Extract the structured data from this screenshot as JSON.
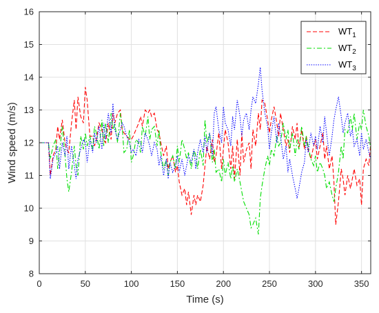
{
  "chart_data": {
    "type": "line",
    "xlabel": "Time (s)",
    "ylabel": "Wind speed (m/s)",
    "xlim": [
      0,
      360
    ],
    "ylim": [
      8,
      16
    ],
    "xticks": [
      "0",
      "50",
      "100",
      "150",
      "200",
      "250",
      "300",
      "350"
    ],
    "yticks": [
      "8",
      "9",
      "10",
      "11",
      "12",
      "13",
      "14",
      "15",
      "16"
    ],
    "grid": true,
    "legend_position": "top-right",
    "series": [
      {
        "name": "WT",
        "subscript": "1",
        "color": "#ff0000",
        "dash": "dashed",
        "x": [
          0,
          10,
          12,
          15,
          18,
          20,
          22,
          25,
          28,
          30,
          32,
          35,
          38,
          40,
          42,
          45,
          48,
          50,
          52,
          55,
          58,
          60,
          62,
          65,
          68,
          70,
          72,
          75,
          78,
          80,
          82,
          85,
          88,
          90,
          92,
          95,
          98,
          100,
          102,
          105,
          108,
          110,
          112,
          115,
          118,
          120,
          122,
          125,
          128,
          130,
          132,
          135,
          138,
          140,
          142,
          145,
          148,
          150,
          152,
          155,
          158,
          160,
          162,
          165,
          168,
          170,
          172,
          175,
          178,
          180,
          182,
          185,
          188,
          190,
          192,
          195,
          198,
          200,
          202,
          205,
          208,
          210,
          212,
          215,
          218,
          220,
          222,
          225,
          228,
          230,
          232,
          235,
          238,
          240,
          242,
          245,
          248,
          250,
          252,
          255,
          258,
          260,
          262,
          265,
          268,
          270,
          272,
          275,
          278,
          280,
          282,
          285,
          288,
          290,
          292,
          295,
          298,
          300,
          302,
          305,
          308,
          310,
          312,
          315,
          318,
          320,
          322,
          325,
          328,
          330,
          332,
          335,
          338,
          340,
          342,
          345,
          348,
          350,
          352,
          355,
          358,
          360
        ],
        "y": [
          12.0,
          12.0,
          11.0,
          11.6,
          11.8,
          12.5,
          12.1,
          12.7,
          12.0,
          11.8,
          11.7,
          12.6,
          13.3,
          12.4,
          13.4,
          12.8,
          12.6,
          13.7,
          13.3,
          12.2,
          12.2,
          11.9,
          12.1,
          12.6,
          12.4,
          12.1,
          12.0,
          12.6,
          12.1,
          12.9,
          12.6,
          12.9,
          13.0,
          12.4,
          12.3,
          12.2,
          12.1,
          12.1,
          12.2,
          12.4,
          12.6,
          12.8,
          12.5,
          13.0,
          12.9,
          13.0,
          12.8,
          12.9,
          12.4,
          12.3,
          12.0,
          11.6,
          11.9,
          11.2,
          11.4,
          11.6,
          11.1,
          11.3,
          10.8,
          10.4,
          10.6,
          10.1,
          10.5,
          9.8,
          10.4,
          10.1,
          10.4,
          10.2,
          10.7,
          11.3,
          11.9,
          11.5,
          12.1,
          11.4,
          11.6,
          12.3,
          11.2,
          11.8,
          12.4,
          12.0,
          11.2,
          11.9,
          10.9,
          12.1,
          11.0,
          12.3,
          11.4,
          11.8,
          12.0,
          11.2,
          12.4,
          11.9,
          12.9,
          12.4,
          13.3,
          13.2,
          12.7,
          12.3,
          12.7,
          13.1,
          12.6,
          12.2,
          12.9,
          12.4,
          11.9,
          12.1,
          11.7,
          12.5,
          12.1,
          12.6,
          11.8,
          12.4,
          11.8,
          12.2,
          11.8,
          11.5,
          11.9,
          12.1,
          11.5,
          11.9,
          12.3,
          11.5,
          11.9,
          11.2,
          11.6,
          10.8,
          9.5,
          10.2,
          11.2,
          10.9,
          10.4,
          11.0,
          10.6,
          10.9,
          11.2,
          10.7,
          10.9,
          10.1,
          11.2,
          11.5,
          11.3,
          12.0
        ]
      },
      {
        "name": "WT",
        "subscript": "2",
        "color": "#00dd00",
        "dash": "dashdot",
        "x": [
          0,
          10,
          12,
          15,
          18,
          20,
          22,
          25,
          28,
          30,
          32,
          35,
          38,
          40,
          42,
          45,
          48,
          50,
          52,
          55,
          58,
          60,
          62,
          65,
          68,
          70,
          72,
          75,
          78,
          80,
          82,
          85,
          88,
          90,
          92,
          95,
          98,
          100,
          102,
          105,
          108,
          110,
          112,
          115,
          118,
          120,
          122,
          125,
          128,
          130,
          132,
          135,
          138,
          140,
          142,
          145,
          148,
          150,
          152,
          155,
          158,
          160,
          162,
          165,
          168,
          170,
          172,
          175,
          178,
          180,
          182,
          185,
          188,
          190,
          192,
          195,
          198,
          200,
          202,
          205,
          208,
          210,
          212,
          215,
          218,
          220,
          222,
          225,
          228,
          230,
          232,
          235,
          238,
          240,
          242,
          245,
          248,
          250,
          252,
          255,
          258,
          260,
          262,
          265,
          268,
          270,
          272,
          275,
          278,
          280,
          282,
          285,
          288,
          290,
          292,
          295,
          298,
          300,
          302,
          305,
          308,
          310,
          312,
          315,
          318,
          320,
          322,
          325,
          328,
          330,
          332,
          335,
          338,
          340,
          342,
          345,
          348,
          350,
          352,
          355,
          358,
          360
        ],
        "y": [
          12.0,
          12.0,
          11.5,
          11.9,
          12.1,
          11.2,
          11.7,
          12.5,
          11.6,
          10.9,
          10.5,
          11.1,
          11.9,
          11.3,
          11.0,
          12.2,
          11.8,
          12.3,
          11.9,
          12.2,
          11.8,
          12.5,
          12.3,
          11.8,
          12.7,
          11.9,
          12.6,
          12.0,
          12.9,
          12.4,
          12.6,
          12.0,
          12.9,
          12.5,
          11.7,
          11.8,
          12.4,
          11.4,
          11.6,
          12.1,
          12.0,
          11.7,
          12.5,
          12.2,
          12.8,
          12.1,
          12.4,
          12.5,
          11.9,
          12.4,
          11.7,
          11.2,
          11.5,
          11.0,
          11.4,
          11.6,
          11.2,
          11.9,
          11.4,
          12.1,
          11.8,
          11.5,
          11.7,
          11.2,
          11.8,
          11.6,
          11.2,
          11.8,
          11.3,
          12.7,
          12.0,
          12.3,
          11.4,
          11.8,
          11.1,
          11.2,
          10.8,
          11.5,
          11.0,
          11.4,
          10.9,
          11.3,
          10.8,
          11.2,
          10.8,
          10.5,
          10.2,
          10.0,
          9.8,
          9.4,
          9.5,
          9.7,
          9.2,
          10.3,
          10.7,
          11.2,
          11.6,
          11.3,
          11.8,
          11.6,
          12.2,
          11.9,
          12.0,
          12.6,
          12.1,
          12.4,
          11.8,
          12.3,
          11.6,
          12.1,
          11.8,
          12.5,
          11.9,
          12.2,
          11.9,
          11.5,
          11.3,
          11.6,
          11.1,
          11.4,
          11.2,
          11.0,
          10.6,
          10.8,
          10.4,
          10.2,
          10.6,
          11.1,
          11.9,
          11.5,
          12.4,
          12.3,
          12.8,
          12.4,
          12.9,
          12.1,
          12.6,
          12.4,
          13.0,
          12.5,
          12.2,
          11.8
        ]
      },
      {
        "name": "WT",
        "subscript": "3",
        "color": "#0000ff",
        "dash": "dotted",
        "x": [
          0,
          10,
          12,
          15,
          18,
          20,
          22,
          25,
          28,
          30,
          32,
          35,
          38,
          40,
          42,
          45,
          48,
          50,
          52,
          55,
          58,
          60,
          62,
          65,
          68,
          70,
          72,
          75,
          78,
          80,
          82,
          85,
          88,
          90,
          92,
          95,
          98,
          100,
          102,
          105,
          108,
          110,
          112,
          115,
          118,
          120,
          122,
          125,
          128,
          130,
          132,
          135,
          138,
          140,
          142,
          145,
          148,
          150,
          152,
          155,
          158,
          160,
          162,
          165,
          168,
          170,
          172,
          175,
          178,
          180,
          182,
          185,
          188,
          190,
          192,
          195,
          198,
          200,
          202,
          205,
          208,
          210,
          212,
          215,
          218,
          220,
          222,
          225,
          228,
          230,
          232,
          235,
          238,
          240,
          242,
          245,
          248,
          250,
          252,
          255,
          258,
          260,
          262,
          265,
          268,
          270,
          272,
          275,
          278,
          280,
          282,
          285,
          288,
          290,
          292,
          295,
          298,
          300,
          302,
          305,
          308,
          310,
          312,
          315,
          318,
          320,
          322,
          325,
          328,
          330,
          332,
          335,
          338,
          340,
          342,
          345,
          348,
          350,
          352,
          355,
          358,
          360
        ],
        "y": [
          12.0,
          12.0,
          10.9,
          11.5,
          11.7,
          11.9,
          11.2,
          12.0,
          11.6,
          12.2,
          11.2,
          11.9,
          11.3,
          10.9,
          11.5,
          11.8,
          12.1,
          12.0,
          11.4,
          12.1,
          11.7,
          12.3,
          12.0,
          12.5,
          11.8,
          12.6,
          12.1,
          12.9,
          12.3,
          13.2,
          12.4,
          12.1,
          12.4,
          12.6,
          12.5,
          12.2,
          12.0,
          11.7,
          11.8,
          11.6,
          12.1,
          12.0,
          11.7,
          12.3,
          12.1,
          11.9,
          11.6,
          12.0,
          11.8,
          11.3,
          11.6,
          11.0,
          11.5,
          10.9,
          11.4,
          11.1,
          11.3,
          11.6,
          11.1,
          11.5,
          11.0,
          11.3,
          11.6,
          11.4,
          11.8,
          11.2,
          11.7,
          12.1,
          11.7,
          12.2,
          11.7,
          12.3,
          11.6,
          12.9,
          13.1,
          12.4,
          12.0,
          13.1,
          12.6,
          12.4,
          11.9,
          12.8,
          12.4,
          13.3,
          12.8,
          12.2,
          12.7,
          12.9,
          12.4,
          13.0,
          13.4,
          13.2,
          13.8,
          14.3,
          13.6,
          12.9,
          12.5,
          11.8,
          12.3,
          12.8,
          12.0,
          12.6,
          12.2,
          11.5,
          11.9,
          11.1,
          11.5,
          11.0,
          10.6,
          10.3,
          10.6,
          11.1,
          11.4,
          12.1,
          11.7,
          12.3,
          11.9,
          12.2,
          11.8,
          12.5,
          12.0,
          12.8,
          12.3,
          11.6,
          12.2,
          12.7,
          13.0,
          13.4,
          12.8,
          12.3,
          12.6,
          12.9,
          12.2,
          12.4,
          11.9,
          12.1,
          11.6,
          12.3,
          11.8,
          12.1,
          11.7,
          11.5
        ]
      }
    ]
  }
}
